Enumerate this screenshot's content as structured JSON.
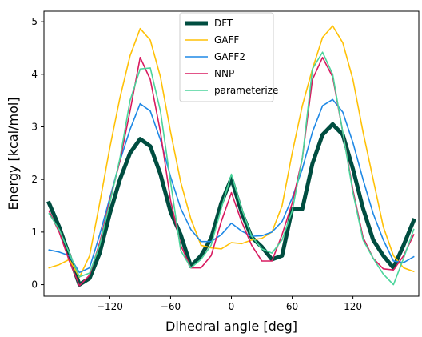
{
  "chart_data": {
    "type": "line",
    "xlabel": "Dihedral angle [deg]",
    "ylabel": "Energy [kcal/mol]",
    "xlim": [
      -185,
      185
    ],
    "ylim": [
      -0.22,
      5.2
    ],
    "xticks": [
      -120,
      -60,
      0,
      60,
      120
    ],
    "xtick_labels": [
      "−120",
      "−60",
      "0",
      "60",
      "120"
    ],
    "yticks": [
      0,
      1,
      2,
      3,
      4,
      5
    ],
    "ytick_labels": [
      "0",
      "1",
      "2",
      "3",
      "4",
      "5"
    ],
    "grid": false,
    "legend_position": "top-center",
    "x": [
      -180,
      -170,
      -160,
      -150,
      -140,
      -130,
      -120,
      -110,
      -100,
      -90,
      -80,
      -70,
      -60,
      -50,
      -40,
      -30,
      -20,
      -10,
      0,
      10,
      20,
      30,
      40,
      50,
      60,
      70,
      80,
      90,
      100,
      110,
      120,
      130,
      140,
      150,
      160,
      170,
      180
    ],
    "series": [
      {
        "name": "DFT",
        "color": "#004d40",
        "width": 5,
        "values": [
          1.55,
          1.1,
          0.55,
          0.0,
          0.12,
          0.6,
          1.35,
          2.0,
          2.5,
          2.77,
          2.63,
          2.1,
          1.38,
          0.95,
          0.35,
          0.55,
          0.88,
          1.55,
          2.02,
          1.38,
          0.9,
          0.72,
          0.48,
          0.55,
          1.44,
          1.44,
          2.3,
          2.85,
          3.05,
          2.85,
          2.2,
          1.45,
          0.85,
          0.55,
          0.32,
          0.75,
          1.22
        ]
      },
      {
        "name": "GAFF",
        "color": "#ffc107",
        "width": 1.6,
        "values": [
          0.32,
          0.38,
          0.48,
          0.14,
          0.55,
          1.55,
          2.6,
          3.55,
          4.35,
          4.87,
          4.65,
          3.95,
          2.9,
          1.95,
          1.25,
          0.75,
          0.7,
          0.68,
          0.8,
          0.78,
          0.85,
          0.88,
          1.0,
          1.5,
          2.5,
          3.4,
          4.1,
          4.7,
          4.92,
          4.6,
          3.9,
          2.9,
          2.0,
          1.1,
          0.55,
          0.32,
          0.25
        ]
      },
      {
        "name": "GAFF2",
        "color": "#1e88e5",
        "width": 1.6,
        "values": [
          0.66,
          0.62,
          0.55,
          0.23,
          0.32,
          0.95,
          1.65,
          2.35,
          2.95,
          3.44,
          3.3,
          2.75,
          2.05,
          1.45,
          1.05,
          0.82,
          0.82,
          0.95,
          1.17,
          1.02,
          0.92,
          0.93,
          1.0,
          1.2,
          1.65,
          2.2,
          2.9,
          3.4,
          3.52,
          3.28,
          2.7,
          2.0,
          1.35,
          0.85,
          0.45,
          0.42,
          0.53
        ]
      },
      {
        "name": "NNP",
        "color": "#d81b60",
        "width": 1.6,
        "values": [
          1.4,
          1.0,
          0.45,
          -0.02,
          0.18,
          0.8,
          1.6,
          2.35,
          3.3,
          4.32,
          3.9,
          2.9,
          1.6,
          0.75,
          0.32,
          0.32,
          0.55,
          1.2,
          1.75,
          1.2,
          0.75,
          0.45,
          0.45,
          0.95,
          1.55,
          2.4,
          3.9,
          4.32,
          3.95,
          2.9,
          1.8,
          0.9,
          0.5,
          0.3,
          0.28,
          0.55,
          0.95
        ]
      },
      {
        "name": "parameterize",
        "color": "#4bd49b",
        "width": 1.6,
        "values": [
          1.35,
          1.05,
          0.6,
          0.15,
          0.22,
          0.75,
          1.55,
          2.4,
          3.5,
          4.1,
          4.12,
          3.3,
          1.95,
          0.65,
          0.32,
          0.48,
          0.75,
          1.45,
          2.1,
          1.45,
          0.92,
          0.68,
          0.6,
          0.85,
          1.4,
          2.4,
          4.1,
          4.42,
          4.0,
          2.9,
          1.75,
          0.85,
          0.5,
          0.2,
          0.0,
          0.5,
          1.05
        ]
      }
    ]
  }
}
